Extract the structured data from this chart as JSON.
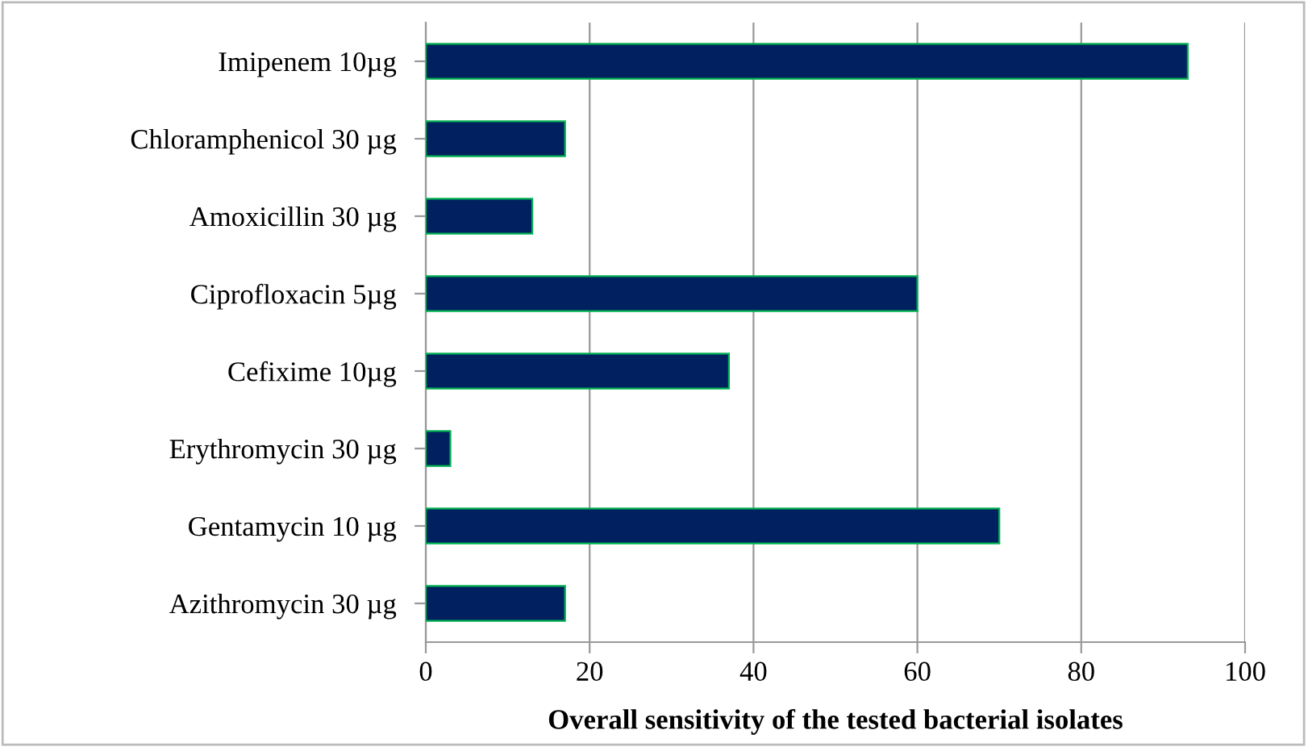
{
  "chart_data": {
    "type": "bar",
    "orientation": "horizontal",
    "xlabel": "Overall sensitivity of the tested bacterial isolates",
    "categories": [
      "Imipenem 10µg",
      "Chloramphenicol 30 µg",
      "Amoxicillin 30 µg",
      "Ciprofloxacin 5µg",
      "Cefixime 10µg",
      "Erythromycin 30 µg",
      "Gentamycin 10 µg",
      "Azithromycin 30 µg"
    ],
    "values": [
      93,
      17,
      13,
      60,
      37,
      3,
      70,
      17
    ],
    "color": "#002060",
    "xlim": [
      0,
      100
    ],
    "xticks": [
      0,
      20,
      40,
      60,
      80,
      100
    ],
    "grid": "x",
    "legend": false
  }
}
